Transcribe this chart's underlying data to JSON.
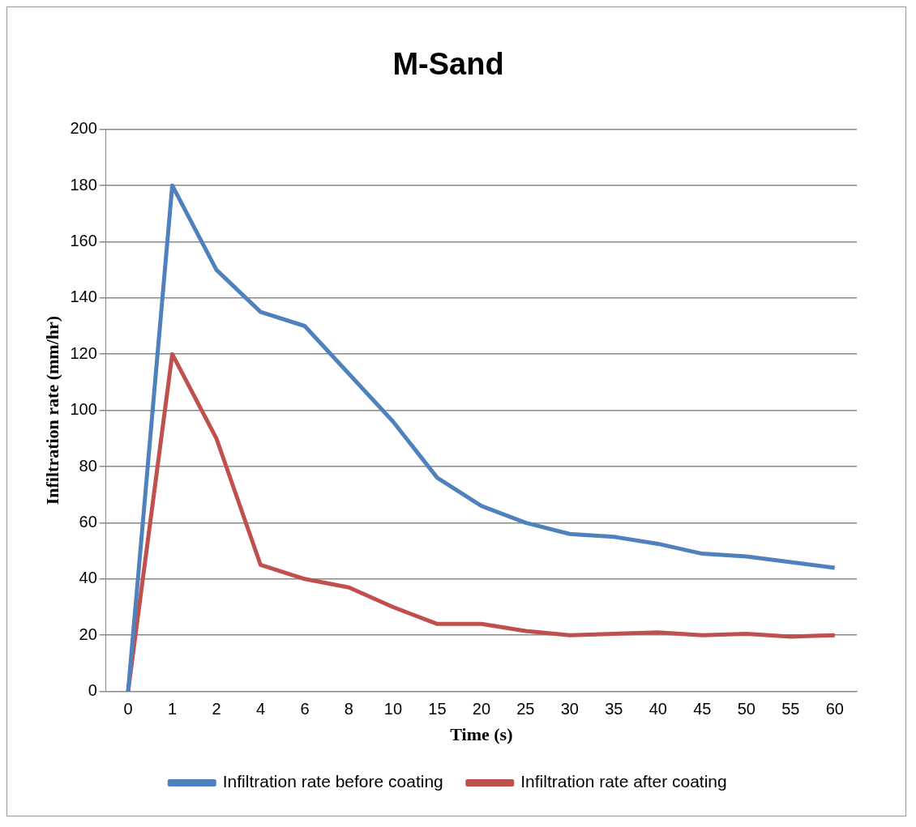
{
  "chart_data": {
    "type": "line",
    "title": "M-Sand",
    "xlabel": "Time (s)",
    "ylabel": "Infiltration rate (mm/hr)",
    "categories": [
      "0",
      "1",
      "2",
      "4",
      "6",
      "8",
      "10",
      "15",
      "20",
      "25",
      "30",
      "35",
      "40",
      "45",
      "50",
      "55",
      "60"
    ],
    "series": [
      {
        "name": "Infiltration rate before coating",
        "color": "#4f81bd",
        "values": [
          0,
          180,
          150,
          135,
          130,
          113,
          96,
          76,
          66,
          60,
          56,
          55,
          52.5,
          49,
          48,
          46,
          44
        ]
      },
      {
        "name": "Infiltration rate after coating",
        "color": "#c0504d",
        "values": [
          0,
          120,
          90,
          45,
          40,
          37,
          30,
          24,
          24,
          21.5,
          20,
          20.5,
          21,
          20,
          20.5,
          19.5,
          20
        ]
      }
    ],
    "ylim": [
      0,
      200
    ],
    "yticks": [
      0,
      20,
      40,
      60,
      80,
      100,
      120,
      140,
      160,
      180,
      200
    ],
    "grid": "y",
    "legend": "bottom",
    "marker": "none",
    "line_style": "solid"
  }
}
